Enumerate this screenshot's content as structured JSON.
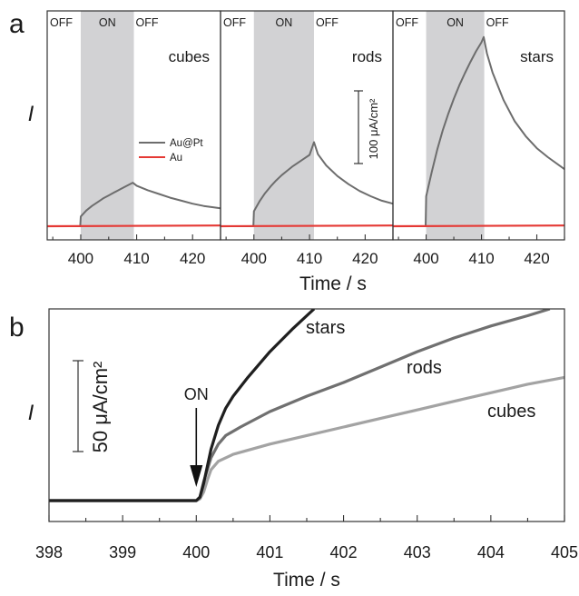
{
  "figure": {
    "panel_a_letter": "a",
    "panel_b_letter": "b"
  },
  "chart_data": [
    {
      "type": "line",
      "panel": "a",
      "name": "cubes",
      "x_unit": "s",
      "xlabel": "Time / s",
      "ylabel": "I",
      "xlim": [
        394,
        425
      ],
      "xticks": [
        "400",
        "410",
        "420"
      ],
      "illumination": {
        "on_start": 400,
        "on_end": 409.5
      },
      "region_labels": [
        "OFF",
        "ON",
        "OFF"
      ],
      "legend": [
        "Au@Pt",
        "Au"
      ],
      "scale_bar": "",
      "series": [
        {
          "name": "Au@Pt",
          "color": "#6d6d6d",
          "x": [
            394,
            399.9,
            400,
            401,
            402,
            403,
            404,
            405,
            406,
            407,
            408,
            409.3,
            410,
            412,
            414,
            416,
            418,
            420,
            422,
            425
          ],
          "y": [
            0,
            0,
            13,
            21,
            27,
            32,
            37,
            41,
            45,
            49,
            53,
            58,
            54,
            48,
            43,
            38,
            34,
            30,
            27,
            24
          ]
        },
        {
          "name": "Au",
          "color": "#e53935",
          "x": [
            394,
            425
          ],
          "y": [
            0,
            1
          ]
        }
      ]
    },
    {
      "type": "line",
      "panel": "a",
      "name": "rods",
      "x_unit": "s",
      "xlim": [
        394,
        425
      ],
      "xticks": [
        "400",
        "410",
        "420"
      ],
      "illumination": {
        "on_start": 400,
        "on_end": 410.8
      },
      "region_labels": [
        "OFF",
        "ON",
        "OFF"
      ],
      "scale_bar": "100 μA/cm²",
      "series": [
        {
          "name": "Au@Pt",
          "color": "#6d6d6d",
          "x": [
            394,
            399.9,
            400,
            401,
            402,
            403,
            404,
            405,
            406,
            407,
            408,
            409,
            410,
            410.8,
            411.5,
            413,
            415,
            417,
            419,
            421,
            423,
            425
          ],
          "y": [
            0,
            0,
            20,
            33,
            44,
            53,
            61,
            68,
            74,
            80,
            85,
            90,
            95,
            112,
            96,
            81,
            67,
            56,
            47,
            40,
            34,
            30
          ]
        },
        {
          "name": "Au",
          "color": "#e53935",
          "x": [
            394,
            425
          ],
          "y": [
            0,
            1
          ]
        }
      ]
    },
    {
      "type": "line",
      "panel": "a",
      "name": "stars",
      "x_unit": "s",
      "xlim": [
        394,
        425
      ],
      "xticks": [
        "400",
        "410",
        "420"
      ],
      "illumination": {
        "on_start": 400,
        "on_end": 410.5
      },
      "region_labels": [
        "OFF",
        "ON",
        "OFF"
      ],
      "scale_bar": "",
      "series": [
        {
          "name": "Au@Pt",
          "color": "#6d6d6d",
          "x": [
            394,
            399.9,
            400,
            401,
            402,
            403,
            404,
            405,
            406,
            407,
            408,
            409,
            410,
            410.4,
            411,
            412,
            414,
            416,
            418,
            420,
            422,
            425
          ],
          "y": [
            0,
            0,
            40,
            72,
            102,
            128,
            150,
            170,
            188,
            204,
            219,
            233,
            245,
            252,
            230,
            205,
            168,
            140,
            120,
            104,
            92,
            76
          ]
        },
        {
          "name": "Au",
          "color": "#e53935",
          "x": [
            394,
            425
          ],
          "y": [
            0,
            1
          ]
        }
      ]
    },
    {
      "type": "line",
      "panel": "b",
      "xlabel": "Time / s",
      "ylabel": "I",
      "xlim": [
        398,
        405
      ],
      "ylim": [
        0,
        112
      ],
      "xticks": [
        "398",
        "399",
        "400",
        "401",
        "402",
        "403",
        "404",
        "405"
      ],
      "annotation": "ON",
      "annotation_x": 400,
      "scale_bar": "50 μA/cm²",
      "series": [
        {
          "name": "cubes",
          "color": "#a3a3a3",
          "x": [
            398,
            399,
            400,
            400.05,
            400.1,
            400.15,
            400.2,
            400.3,
            400.5,
            401,
            401.5,
            402,
            402.5,
            403,
            403.5,
            404,
            404.5,
            405
          ],
          "y": [
            0,
            0,
            0,
            1,
            5,
            12,
            18,
            23,
            27,
            33,
            38,
            43,
            48,
            53,
            58,
            63,
            68,
            72
          ]
        },
        {
          "name": "rods",
          "color": "#707070",
          "x": [
            398,
            399,
            400,
            400.05,
            400.1,
            400.2,
            400.3,
            400.4,
            400.6,
            401,
            401.5,
            402,
            402.5,
            403,
            403.5,
            404,
            404.5,
            404.8
          ],
          "y": [
            0,
            0,
            0,
            2,
            11,
            25,
            33,
            38,
            43,
            52,
            61,
            69,
            78,
            87,
            95,
            102,
            108,
            112
          ]
        },
        {
          "name": "stars",
          "color": "#1f1f1f",
          "x": [
            398,
            399,
            400,
            400.05,
            400.1,
            400.2,
            400.3,
            400.4,
            400.5,
            400.7,
            401,
            401.3,
            401.6
          ],
          "y": [
            0,
            0,
            0,
            2,
            10,
            30,
            44,
            54,
            61,
            72,
            87,
            100,
            112
          ]
        }
      ]
    }
  ]
}
